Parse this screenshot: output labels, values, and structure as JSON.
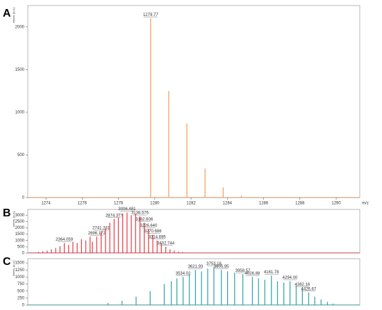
{
  "chart_data": [
    {
      "type": "stick",
      "label": "A",
      "y_label": "Intens. [a.u.]",
      "x_label": "m/z",
      "color": "#f5a25c",
      "xlim": [
        1273,
        1291.3
      ],
      "xticks": [
        1274,
        1276,
        1278,
        1280,
        1282,
        1284,
        1286,
        1288,
        1290
      ],
      "ylim": [
        0,
        2250
      ],
      "yticks": [
        0,
        500,
        1000,
        1500,
        2000
      ],
      "x": [
        1279.77,
        1280.77,
        1281.77,
        1282.77,
        1283.77,
        1284.77
      ],
      "values": [
        2100,
        1250,
        870,
        340,
        120,
        25
      ],
      "point_labels": [
        "1279.77",
        null,
        null,
        null,
        null,
        null
      ]
    },
    {
      "type": "stick",
      "label": "B",
      "y_label": "Intens. [a.u.]",
      "color": "#e8454f",
      "xlim": [
        1990,
        5390
      ],
      "ylim": [
        0,
        3450
      ],
      "yticks": [
        0,
        500,
        1000,
        1500,
        2000,
        2500,
        3000
      ],
      "x": [
        2100,
        2144,
        2188,
        2232,
        2276,
        2320,
        2364.059,
        2408,
        2452,
        2496,
        2540,
        2584,
        2628,
        2652,
        2696.172,
        2741.231,
        2786,
        2830,
        2874.377,
        2918,
        2962,
        3006.481,
        3050,
        3094,
        3138.576,
        3182.606,
        3226.64,
        3270.686,
        3314.695,
        3358,
        3402.744,
        3446,
        3490,
        3534,
        3578
      ],
      "values": [
        100,
        150,
        200,
        300,
        400,
        550,
        800,
        650,
        900,
        800,
        1100,
        1000,
        1300,
        900,
        1300,
        1700,
        2000,
        2400,
        2700,
        2800,
        3100,
        3200,
        3000,
        3100,
        2900,
        2400,
        1900,
        1450,
        1000,
        750,
        500,
        300,
        200,
        120,
        80
      ],
      "point_labels": [
        null,
        null,
        null,
        null,
        null,
        null,
        "2364.059",
        null,
        null,
        null,
        null,
        null,
        null,
        null,
        "2696.172",
        "2741.231",
        null,
        null,
        "2874.377",
        null,
        null,
        "3006.481",
        null,
        null,
        "3138.576",
        "3182.606",
        "3226.640",
        "3270.686",
        "3314.695",
        null,
        "3402.744",
        null,
        null,
        null,
        null
      ]
    },
    {
      "type": "stick",
      "label": "C",
      "y_label": "Intens. [a.u.]",
      "color": "#3aa8a8",
      "xlim": [
        2430,
        4790
      ],
      "ylim": [
        0,
        1650
      ],
      "yticks": [
        0,
        250,
        500,
        750,
        1000,
        1250,
        1500
      ],
      "x": [
        3000,
        3100,
        3200,
        3300,
        3400,
        3450,
        3490,
        3534.02,
        3578,
        3621.93,
        3665,
        3709,
        3753.16,
        3805.95,
        3850,
        3900,
        3958.57,
        4026.88,
        4070,
        4115,
        4161.78,
        4205,
        4250,
        4294,
        4338,
        4382.16,
        4426.67,
        4470,
        4515,
        4560,
        4600
      ],
      "values": [
        80,
        150,
        300,
        500,
        750,
        850,
        950,
        1000,
        1100,
        1250,
        1200,
        1300,
        1350,
        1250,
        1200,
        1150,
        1100,
        1000,
        950,
        900,
        1050,
        850,
        800,
        850,
        700,
        600,
        450,
        300,
        200,
        120,
        60
      ],
      "point_labels": [
        null,
        null,
        null,
        null,
        null,
        null,
        null,
        "3534.02",
        null,
        "3621.93",
        null,
        null,
        "3753.16",
        "3805.95",
        null,
        null,
        "3958.57",
        "4026.88",
        null,
        null,
        "4161.78",
        null,
        null,
        "4294.00",
        null,
        "4382.16",
        "4426.67",
        null,
        null,
        null,
        null
      ]
    }
  ]
}
